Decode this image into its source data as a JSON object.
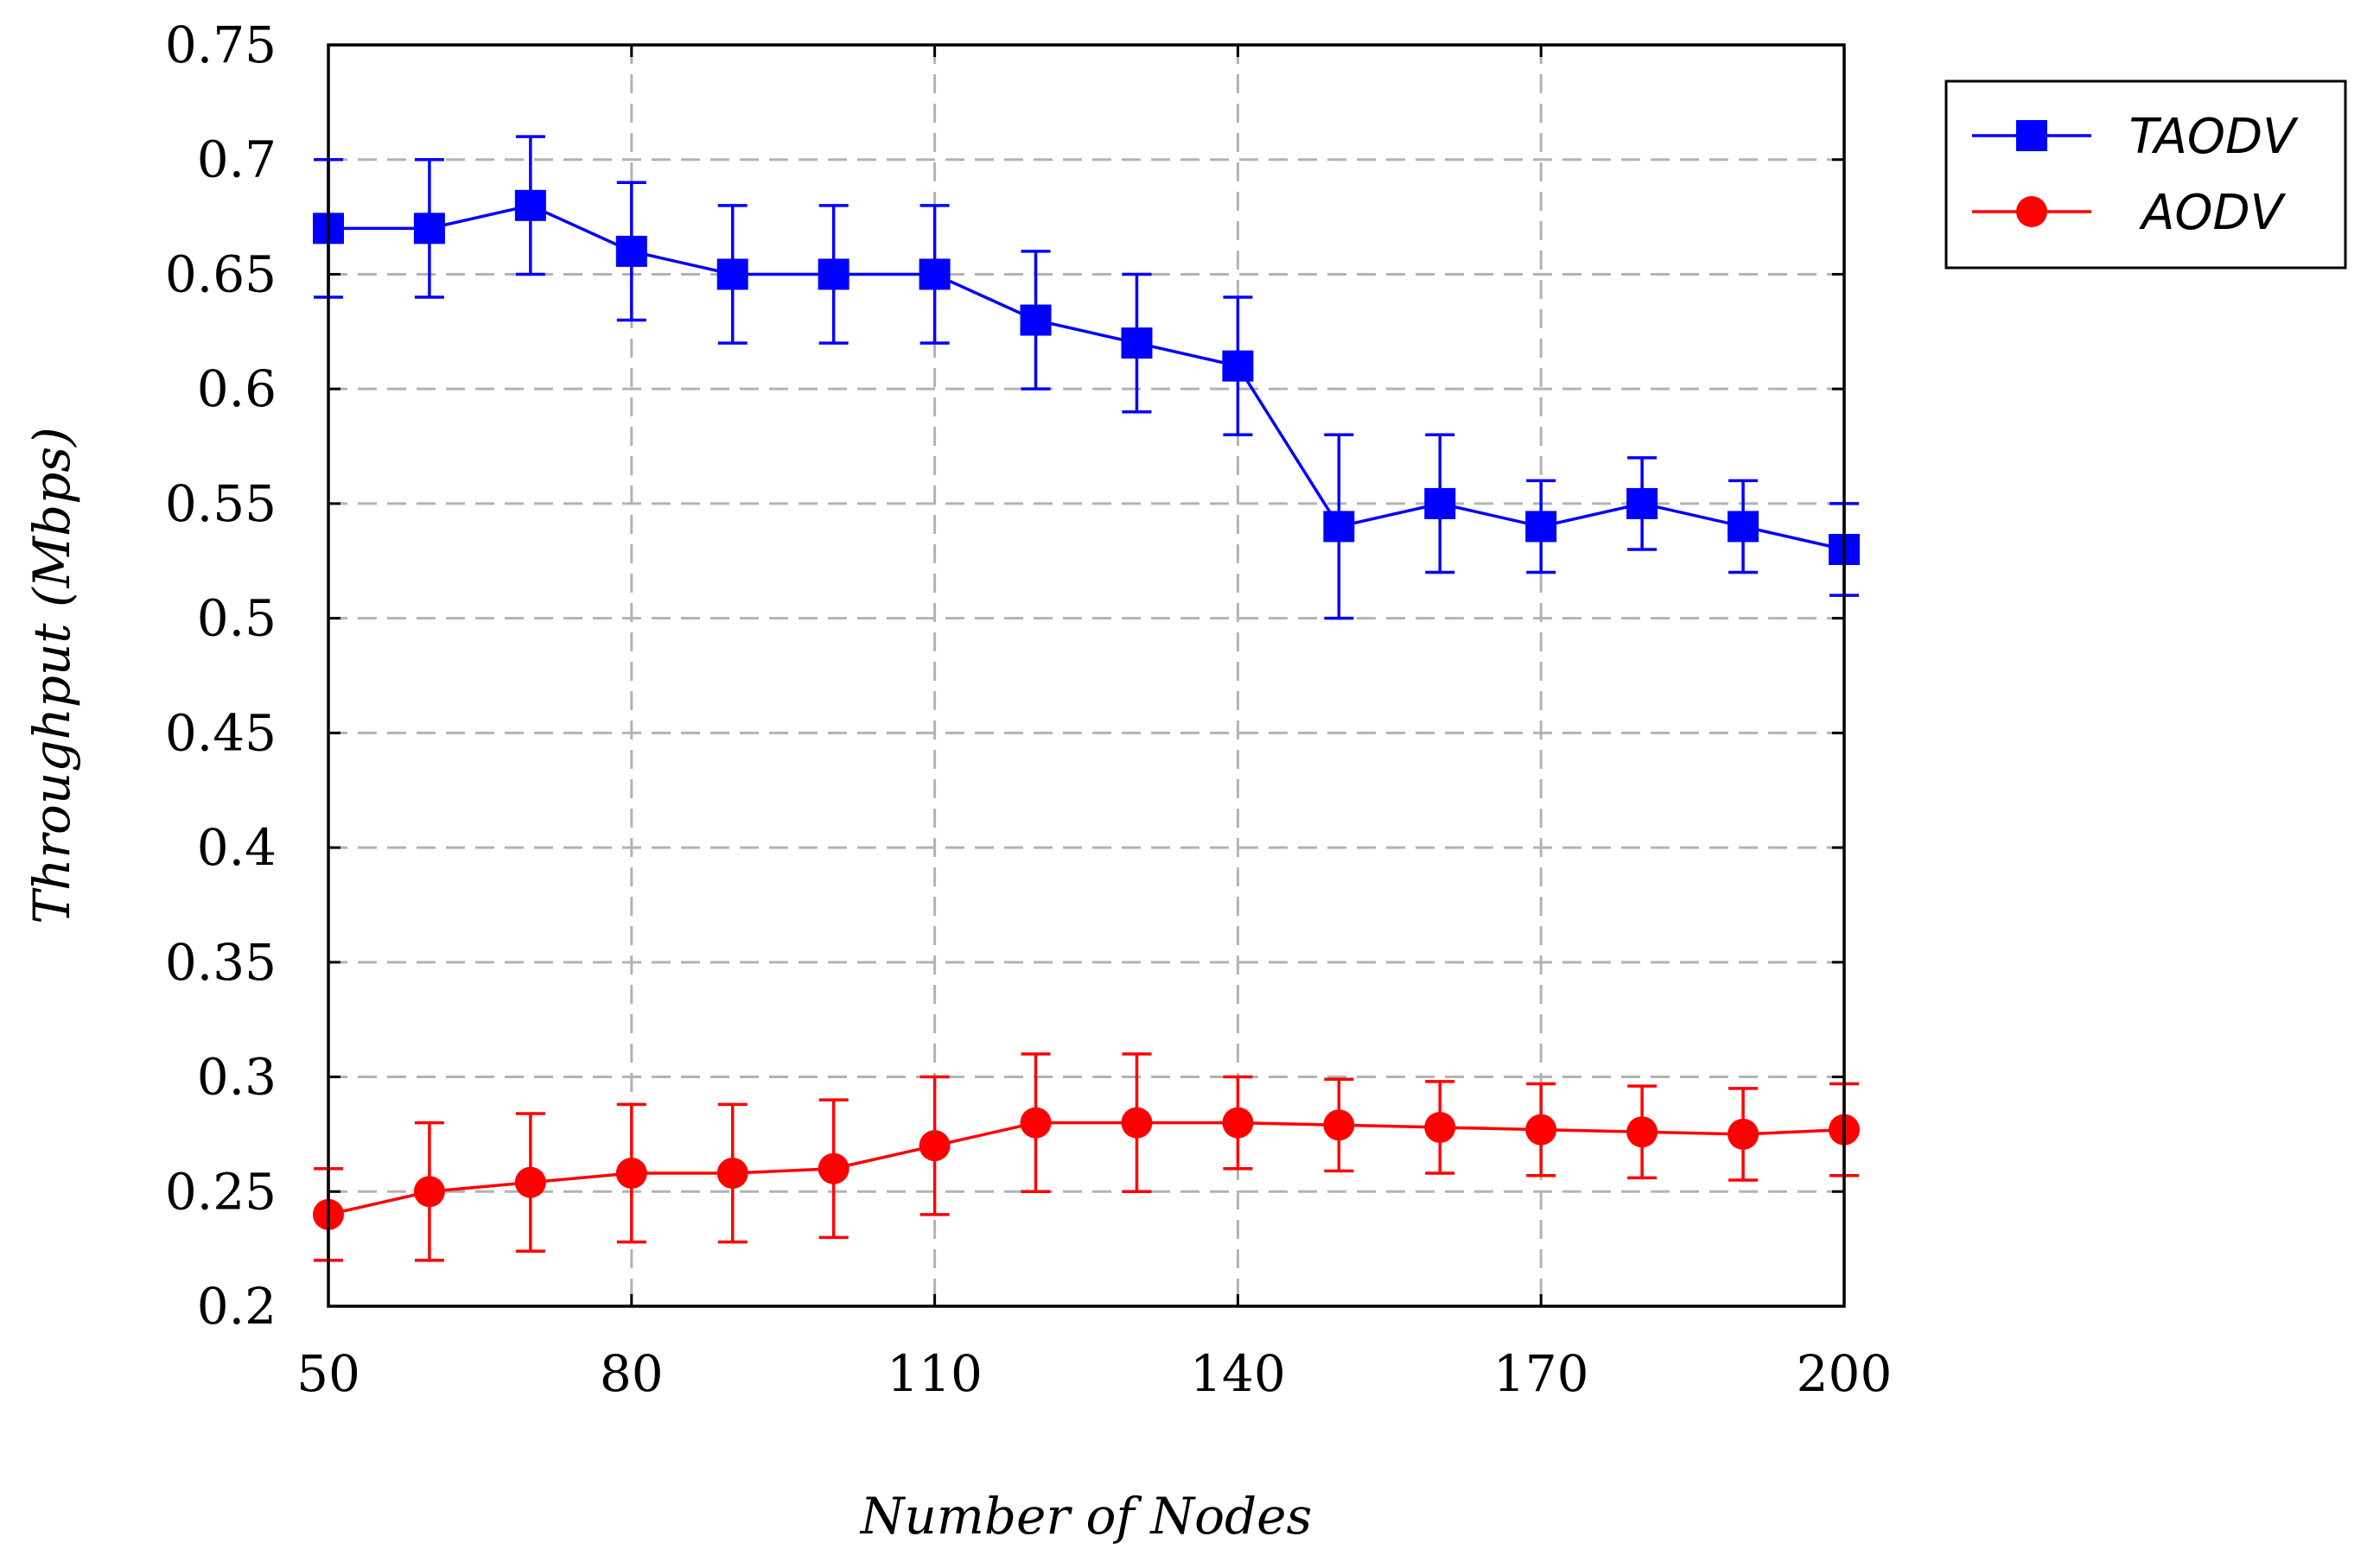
{
  "chart_data": {
    "type": "line",
    "title": "",
    "xlabel": "Number of Nodes",
    "ylabel": "Throughput (Mbps)",
    "xlim": [
      50,
      200
    ],
    "ylim": [
      0.2,
      0.75
    ],
    "x_ticks": [
      50,
      80,
      110,
      140,
      170,
      200
    ],
    "x_tick_labels": [
      "50",
      "80",
      "110",
      "140",
      "170",
      "200"
    ],
    "y_ticks": [
      0.2,
      0.25,
      0.3,
      0.35,
      0.4,
      0.45,
      0.5,
      0.55,
      0.6,
      0.65,
      0.7,
      0.75
    ],
    "y_tick_labels": [
      "0.2",
      "0.25",
      "0.3",
      "0.35",
      "0.4",
      "0.45",
      "0.5",
      "0.55",
      "0.6",
      "0.65",
      "0.7",
      "0.75"
    ],
    "grid": true,
    "legend_position": "outside-top-right",
    "x": [
      50,
      60,
      70,
      80,
      90,
      100,
      110,
      120,
      130,
      140,
      150,
      160,
      170,
      180,
      190,
      200
    ],
    "series": [
      {
        "name": "TAODV",
        "color": "#0000ff",
        "marker": "square",
        "values": [
          0.67,
          0.67,
          0.68,
          0.66,
          0.65,
          0.65,
          0.65,
          0.63,
          0.62,
          0.61,
          0.54,
          0.55,
          0.54,
          0.55,
          0.54,
          0.53
        ],
        "error_low": [
          0.64,
          0.64,
          0.65,
          0.63,
          0.62,
          0.62,
          0.62,
          0.6,
          0.59,
          0.58,
          0.5,
          0.52,
          0.52,
          0.53,
          0.52,
          0.51
        ],
        "error_high": [
          0.7,
          0.7,
          0.71,
          0.69,
          0.68,
          0.68,
          0.68,
          0.66,
          0.65,
          0.64,
          0.58,
          0.58,
          0.56,
          0.57,
          0.56,
          0.55
        ]
      },
      {
        "name": "AODV",
        "color": "#ff0000",
        "marker": "circle",
        "values": [
          0.24,
          0.25,
          0.254,
          0.258,
          0.258,
          0.26,
          0.27,
          0.28,
          0.28,
          0.28,
          0.279,
          0.278,
          0.277,
          0.276,
          0.275,
          0.277
        ],
        "error_low": [
          0.22,
          0.22,
          0.224,
          0.228,
          0.228,
          0.23,
          0.24,
          0.25,
          0.25,
          0.26,
          0.259,
          0.258,
          0.257,
          0.256,
          0.255,
          0.257
        ],
        "error_high": [
          0.26,
          0.28,
          0.284,
          0.288,
          0.288,
          0.29,
          0.3,
          0.31,
          0.31,
          0.3,
          0.299,
          0.298,
          0.297,
          0.296,
          0.295,
          0.297
        ]
      }
    ]
  }
}
